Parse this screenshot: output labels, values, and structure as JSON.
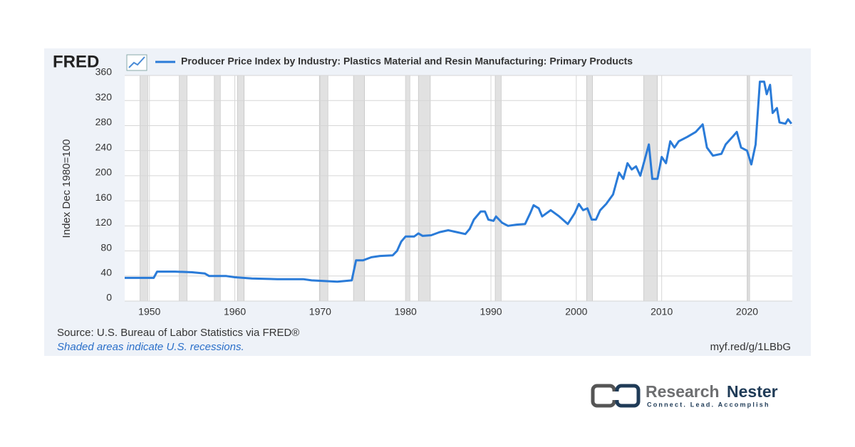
{
  "chart_data": {
    "type": "line",
    "brand": "FRED",
    "y_label": "Index Dec 1980=100",
    "source": "Source: U.S. Bureau of Labor Statistics via FRED®",
    "note": "Shaded areas indicate U.S. recessions.",
    "url": "myf.red/g/1LBbG",
    "xlim": [
      1947.1,
      2025.3
    ],
    "xticks": [
      1950,
      1960,
      1970,
      1980,
      1990,
      2000,
      2010,
      2020
    ],
    "ylim": [
      0,
      360
    ],
    "yticks": [
      0,
      40,
      80,
      120,
      160,
      200,
      240,
      280,
      320,
      360
    ],
    "grid": true,
    "recession_color": "#e1e1e1",
    "recessions": [
      [
        1948.9,
        1949.8
      ],
      [
        1953.5,
        1954.4
      ],
      [
        1957.6,
        1958.3
      ],
      [
        1960.3,
        1961.1
      ],
      [
        1969.9,
        1970.9
      ],
      [
        1973.9,
        1975.2
      ],
      [
        1980.0,
        1980.5
      ],
      [
        1981.5,
        1982.9
      ],
      [
        1990.5,
        1991.2
      ],
      [
        2001.2,
        2001.9
      ],
      [
        2007.9,
        2009.5
      ],
      [
        2020.1,
        2020.3
      ]
    ],
    "x": [
      1947.1,
      1950.5,
      1950.9,
      1953,
      1955,
      1956.5,
      1957,
      1959,
      1960,
      1962,
      1965,
      1968,
      1969,
      1972,
      1973.7,
      1974.2,
      1975,
      1976,
      1977,
      1978.5,
      1979,
      1979.5,
      1980,
      1981,
      1981.5,
      1982,
      1983,
      1984,
      1985,
      1986,
      1987,
      1987.5,
      1988,
      1988.8,
      1989.3,
      1989.7,
      1990.3,
      1990.6,
      1991.3,
      1992,
      1993,
      1994,
      1994.6,
      1995,
      1995.6,
      1996,
      1997,
      1998,
      1999,
      1999.8,
      2000.3,
      2000.8,
      2001.3,
      2001.8,
      2002.3,
      2002.8,
      2003.5,
      2004.3,
      2005,
      2005.5,
      2006,
      2006.5,
      2007,
      2007.5,
      2008,
      2008.5,
      2008.9,
      2009.5,
      2010,
      2010.5,
      2011,
      2011.5,
      2012,
      2013,
      2014,
      2014.8,
      2015.3,
      2016,
      2017,
      2017.5,
      2018.3,
      2018.8,
      2019.3,
      2020,
      2020.5,
      2021,
      2021.5,
      2022,
      2022.3,
      2022.7,
      2023,
      2023.5,
      2023.8,
      2024.5,
      2024.8,
      2025.2
    ],
    "series": [
      {
        "name": "Producer Price Index by Industry: Plastics Material and Resin Manufacturing: Primary Products",
        "color": "#2a7bd8",
        "values": [
          37,
          37,
          47,
          47,
          46,
          44,
          40,
          40,
          38,
          36,
          35,
          35,
          33,
          31,
          33,
          65,
          65,
          70,
          72,
          73,
          80,
          95,
          103,
          103,
          108,
          104,
          105,
          110,
          113,
          110,
          107,
          115,
          130,
          143,
          143,
          130,
          128,
          135,
          125,
          120,
          122,
          123,
          140,
          153,
          148,
          135,
          145,
          135,
          123,
          140,
          155,
          145,
          148,
          130,
          130,
          145,
          155,
          170,
          205,
          195,
          220,
          210,
          215,
          200,
          225,
          250,
          195,
          195,
          230,
          220,
          255,
          245,
          255,
          262,
          270,
          282,
          245,
          232,
          235,
          250,
          262,
          270,
          245,
          240,
          218,
          250,
          350,
          350,
          330,
          345,
          300,
          308,
          285,
          283,
          290,
          283
        ]
      }
    ]
  },
  "logo": {
    "name_light": "Research",
    "name_dark": "Nester",
    "tagline": "Connect. Lead. Accomplish"
  }
}
